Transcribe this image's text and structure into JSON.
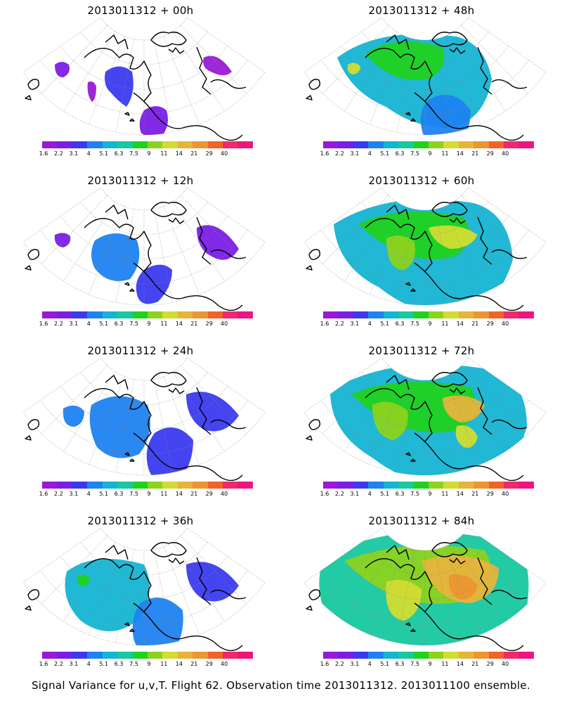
{
  "panels": [
    {
      "title": "2013011312 + 00h",
      "col": 0,
      "row": 0,
      "intensity": 0
    },
    {
      "title": "2013011312 + 48h",
      "col": 1,
      "row": 0,
      "intensity": 4
    },
    {
      "title": "2013011312 + 12h",
      "col": 0,
      "row": 1,
      "intensity": 1
    },
    {
      "title": "2013011312 + 60h",
      "col": 1,
      "row": 1,
      "intensity": 5
    },
    {
      "title": "2013011312 + 24h",
      "col": 0,
      "row": 2,
      "intensity": 2
    },
    {
      "title": "2013011312 + 72h",
      "col": 1,
      "row": 2,
      "intensity": 6
    },
    {
      "title": "2013011312 + 36h",
      "col": 0,
      "row": 3,
      "intensity": 3
    },
    {
      "title": "2013011312 + 84h",
      "col": 1,
      "row": 3,
      "intensity": 7
    }
  ],
  "colorbar": {
    "colors": [
      "#9a19d6",
      "#7a1ee6",
      "#3a3af0",
      "#1e82f0",
      "#14b4d2",
      "#17c8a0",
      "#1ed21e",
      "#8cd21e",
      "#d2dc32",
      "#e6b43c",
      "#eb9632",
      "#f06428",
      "#f0286e",
      "#f0147f"
    ],
    "labels": [
      "1.6",
      "2.2",
      "3.1",
      "4",
      "5.1",
      "6.3",
      "7.5",
      "9",
      "11",
      "14",
      "21",
      "29",
      "40"
    ]
  },
  "footer": "Signal Variance for u,v,T. Flight 62. Observation time 2013011312. 2013011100 ensemble."
}
